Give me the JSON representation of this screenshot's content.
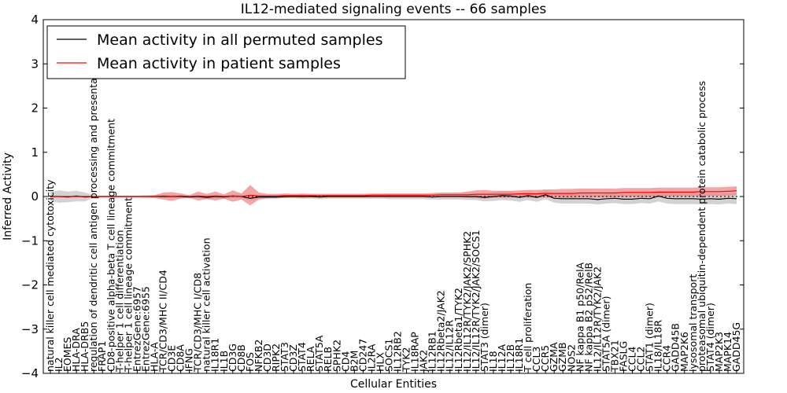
{
  "chart_data": {
    "type": "line",
    "title": "IL12-mediated signaling events -- 66 samples",
    "xlabel": "Cellular Entities",
    "ylabel": "Inferred Activity",
    "ylim": [
      -4,
      4
    ],
    "yticks": [
      "−4",
      "−3",
      "−2",
      "−1",
      "0",
      "1",
      "2",
      "3",
      "4"
    ],
    "legend_position": "top-left",
    "colors": {
      "permuted": "#000000",
      "patient": "#ff0000",
      "patient_band": "#f08080",
      "permuted_band": "#bfbfbf"
    },
    "categories": [
      "natural killer cell mediated cytotoxicity",
      "IL2",
      "EOMES",
      "HLA-DRA",
      "HLA-DRB5",
      "regulation of dendritic cell antigen processing and presentation",
      "FRAP1",
      "CD8-positive alpha-beta T cell lineage commitment",
      "T-helper 1 cell differentiation",
      "T-helper 1 cell lineage commitment",
      "EntrezGene:6957",
      "EntrezGene:6955",
      "HLA-A",
      "TCR/CD3/MHC II/CD4",
      "CD3E",
      "CD8A",
      "IFNG",
      "TCR/CD3/MHC I/CD8",
      "natural killer cell activation",
      "IL18R1",
      "IL1B",
      "CD3G",
      "CD8B",
      "FOS",
      "NFKB2",
      "CD3D",
      "RIPK2",
      "STAT3",
      "CD3Z",
      "STAT4",
      "RELA",
      "STAT5A",
      "RELB",
      "SPHK2",
      "CD4",
      "B2M",
      "CD247",
      "IL2RA",
      "HLX",
      "SOCS1",
      "IL12RB2",
      "TYK2",
      "IL18RAP",
      "JAK2",
      "IL12RB1",
      "IL12Rbeta2/JAK2",
      "IL12/IL12R",
      "IL12Rbeta1/TYK2",
      "IL12/IL12R/TYK2/JAK2/SPHK2",
      "IL12/IL12R/TYK2/JAK2/SOCS1",
      "STAT3 (dimer)",
      "IL18",
      "IL12A",
      "IL12B",
      "IL18R1",
      "T cell proliferation",
      "CCL3",
      "CCR5",
      "GZMA",
      "GZMB",
      "NOS2",
      "NF kappa B1 p50/RelA",
      "NF kappa B2 p52/RelB",
      "IL12/IL12R/TYK2/JAK2",
      "STAT5A (dimer)",
      "TBX21",
      "FASLG",
      "CCL4",
      "CCL2",
      "STAT1 (dimer)",
      "IL18/IL18R",
      "CCR4",
      "GADD45B",
      "MAP2K6",
      "lysosomal transport",
      "proteasomal ubiquitin-dependent protein catabolic process",
      "STAT4 (dimer)",
      "MAP2K3",
      "MAPK14",
      "GADD45G"
    ],
    "series": [
      {
        "name": "Mean activity in all permuted samples",
        "values": [
          0,
          0,
          -0.01,
          0.01,
          -0.01,
          0,
          0,
          0,
          0,
          0,
          0,
          0,
          0,
          0,
          0,
          0,
          -0.01,
          0,
          -0.02,
          0,
          -0.01,
          0.01,
          0,
          -0.04,
          -0.01,
          -0.01,
          -0.01,
          0,
          0,
          0,
          0,
          -0.01,
          0,
          0,
          0,
          0,
          0,
          0,
          0,
          0,
          0,
          0,
          0,
          0,
          -0.01,
          0,
          0,
          0,
          0,
          0,
          -0.02,
          0,
          0.02,
          0.01,
          -0.02,
          0.02,
          -0.02,
          0.04,
          -0.04,
          -0.05,
          -0.05,
          -0.05,
          -0.05,
          -0.07,
          -0.05,
          -0.04,
          -0.06,
          -0.06,
          -0.04,
          -0.05,
          0.01,
          -0.04,
          -0.05,
          -0.05,
          -0.05,
          -0.06,
          -0.05,
          -0.06,
          -0.04,
          -0.05
        ]
      },
      {
        "name": "Mean activity in patient samples",
        "values": [
          0,
          0,
          0,
          0,
          0,
          0,
          0,
          0,
          0,
          0,
          0,
          0,
          0,
          0.01,
          0,
          0.01,
          0,
          0.01,
          0,
          0.01,
          0,
          0.01,
          0,
          0.03,
          0.01,
          0.01,
          0.01,
          0.02,
          0.02,
          0.02,
          0.02,
          0.02,
          0.02,
          0.02,
          0.02,
          0.02,
          0.02,
          0.03,
          0.03,
          0.03,
          0.03,
          0.03,
          0.03,
          0.03,
          0.03,
          0.04,
          0.04,
          0.04,
          0.04,
          0.05,
          0.05,
          0.05,
          0.05,
          0.05,
          0.06,
          0.06,
          0.06,
          0.07,
          0.07,
          0.07,
          0.07,
          0.08,
          0.08,
          0.08,
          0.08,
          0.08,
          0.09,
          0.09,
          0.09,
          0.09,
          0.1,
          0.1,
          0.1,
          0.1,
          0.1,
          0.11,
          0.11,
          0.11,
          0.12,
          0.13
        ]
      }
    ],
    "patient_band_halfwidth": [
      0.01,
      0.01,
      0.01,
      0.01,
      0.01,
      0.01,
      0.01,
      0.01,
      0.01,
      0.01,
      0.01,
      0.01,
      0.03,
      0.08,
      0.1,
      0.06,
      0.03,
      0.1,
      0.06,
      0.1,
      0.05,
      0.13,
      0.07,
      0.23,
      0.08,
      0.05,
      0.05,
      0.05,
      0.04,
      0.05,
      0.04,
      0.04,
      0.04,
      0.04,
      0.04,
      0.04,
      0.04,
      0.04,
      0.04,
      0.04,
      0.04,
      0.04,
      0.04,
      0.04,
      0.05,
      0.05,
      0.05,
      0.05,
      0.07,
      0.09,
      0.1,
      0.08,
      0.08,
      0.08,
      0.08,
      0.09,
      0.09,
      0.09,
      0.09,
      0.1,
      0.1,
      0.1,
      0.1,
      0.1,
      0.1,
      0.1,
      0.1,
      0.1,
      0.1,
      0.1,
      0.1,
      0.1,
      0.1,
      0.1,
      0.1,
      0.1,
      0.1,
      0.1,
      0.1,
      0.1
    ],
    "permuted_band_halfwidth": [
      0.1,
      0.14,
      0.12,
      0.12,
      0.1,
      0.02,
      0.02,
      0.02,
      0.02,
      0.02,
      0.02,
      0.03,
      0.03,
      0.03,
      0.03,
      0.03,
      0.03,
      0.03,
      0.04,
      0.04,
      0.04,
      0.04,
      0.04,
      0.04,
      0.04,
      0.04,
      0.04,
      0.04,
      0.04,
      0.05,
      0.05,
      0.05,
      0.05,
      0.05,
      0.05,
      0.05,
      0.05,
      0.05,
      0.05,
      0.06,
      0.06,
      0.06,
      0.06,
      0.06,
      0.06,
      0.07,
      0.07,
      0.07,
      0.08,
      0.08,
      0.09,
      0.1,
      0.1,
      0.1,
      0.1,
      0.1,
      0.1,
      0.1,
      0.1,
      0.11,
      0.11,
      0.11,
      0.11,
      0.11,
      0.11,
      0.11,
      0.11,
      0.11,
      0.11,
      0.11,
      0.12,
      0.12,
      0.12,
      0.12,
      0.12,
      0.12,
      0.12,
      0.12,
      0.12,
      0.12
    ]
  }
}
